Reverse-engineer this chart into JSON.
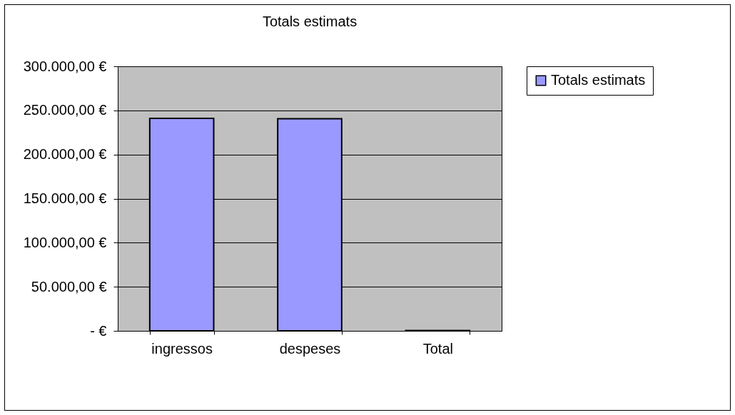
{
  "chart_data": {
    "type": "bar",
    "title": "Totals estimats",
    "categories": [
      "ingressos",
      "despeses",
      "Total"
    ],
    "series": [
      {
        "name": "Totals estimats",
        "color": "#9999ff",
        "values": [
          241000,
          240500,
          500
        ]
      }
    ],
    "ylim": [
      0,
      300000
    ],
    "yticks": [
      {
        "value": 0,
        "label": "-   €"
      },
      {
        "value": 50000,
        "label": "50.000,00 €"
      },
      {
        "value": 100000,
        "label": "100.000,00 €"
      },
      {
        "value": 150000,
        "label": "150.000,00 €"
      },
      {
        "value": 200000,
        "label": "200.000,00 €"
      },
      {
        "value": 250000,
        "label": "250.000,00 €"
      },
      {
        "value": 300000,
        "label": "300.000,00 €"
      }
    ],
    "grid": "y",
    "legend": "right"
  }
}
